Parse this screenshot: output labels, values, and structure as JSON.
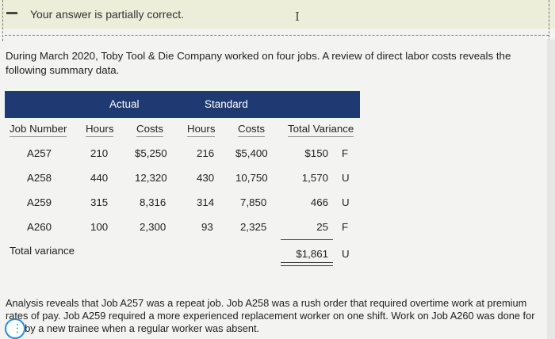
{
  "feedback": {
    "message": "Your answer is partially correct."
  },
  "intro": "During March 2020, Toby Tool & Die Company worked on four jobs. A review of direct labor costs reveals the following summary data.",
  "table": {
    "group_actual": "Actual",
    "group_standard": "Standard",
    "headers": {
      "job": "Job Number",
      "act_hours": "Hours",
      "act_costs": "Costs",
      "std_hours": "Hours",
      "std_costs": "Costs",
      "variance": "Total Variance"
    },
    "rows": [
      {
        "job": "A257",
        "act_hours": "210",
        "act_costs": "$5,250",
        "std_hours": "216",
        "std_costs": "$5,400",
        "variance": "$150",
        "flag": "F"
      },
      {
        "job": "A258",
        "act_hours": "440",
        "act_costs": "12,320",
        "std_hours": "430",
        "std_costs": "10,750",
        "variance": "1,570",
        "flag": "U"
      },
      {
        "job": "A259",
        "act_hours": "315",
        "act_costs": "8,316",
        "std_hours": "314",
        "std_costs": "7,850",
        "variance": "466",
        "flag": "U"
      },
      {
        "job": "A260",
        "act_hours": "100",
        "act_costs": "2,300",
        "std_hours": "93",
        "std_costs": "2,325",
        "variance": "25",
        "flag": "F"
      }
    ],
    "total_label": "Total variance",
    "total_value": "$1,861",
    "total_flag": "U"
  },
  "analysis": "Analysis reveals that Job A257 was a repeat job. Job A258 was a rush order that required overtime work at premium rates of pay. Job A259 required a more experienced replacement worker on one shift. Work on Job A260 was done for pay by a new trainee when a regular worker was absent."
}
